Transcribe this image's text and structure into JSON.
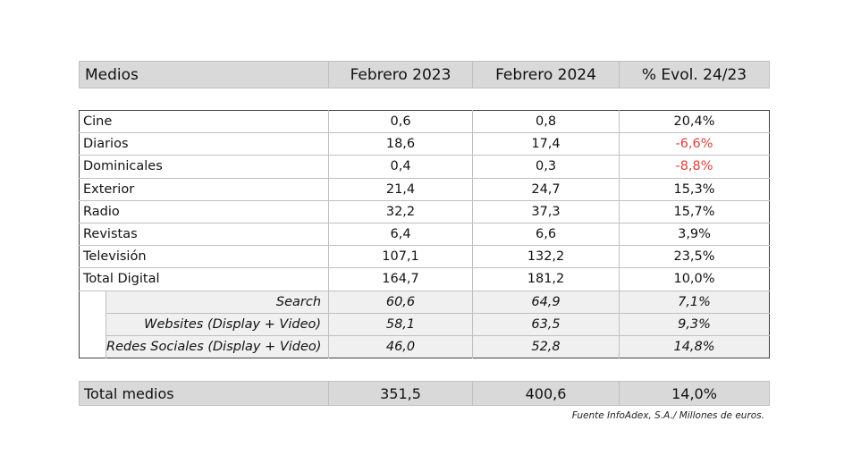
{
  "header": {
    "medio": "Medios",
    "col1": "Febrero 2023",
    "col2": "Febrero 2024",
    "col3": "% Evol. 24/23"
  },
  "rows": [
    {
      "name": "Cine",
      "v2023": "0,6",
      "v2024": "0,8",
      "evol": "20,4%"
    },
    {
      "name": "Diarios",
      "v2023": "18,6",
      "v2024": "17,4",
      "evol": "-6,6%"
    },
    {
      "name": "Dominicales",
      "v2023": "0,4",
      "v2024": "0,3",
      "evol": "-8,8%"
    },
    {
      "name": "Exterior",
      "v2023": "21,4",
      "v2024": "24,7",
      "evol": "15,3%"
    },
    {
      "name": "Radio",
      "v2023": "32,2",
      "v2024": "37,3",
      "evol": "15,7%"
    },
    {
      "name": "Revistas",
      "v2023": "6,4",
      "v2024": "6,6",
      "evol": "3,9%"
    },
    {
      "name": "Televisión",
      "v2023": "107,1",
      "v2024": "132,2",
      "evol": "23,5%"
    },
    {
      "name": "Total Digital",
      "v2023": "164,7",
      "v2024": "181,2",
      "evol": "10,0%"
    }
  ],
  "subrows": [
    {
      "name": "Search",
      "v2023": "60,6",
      "v2024": "64,9",
      "evol": "7,1%"
    },
    {
      "name": "Websites (Display + Video)",
      "v2023": "58,1",
      "v2024": "63,5",
      "evol": "9,3%"
    },
    {
      "name": "Redes Sociales (Display + Video)",
      "v2023": "46,0",
      "v2024": "52,8",
      "evol": "14,8%"
    }
  ],
  "total": {
    "name": "Total medios",
    "v2023": "351,5",
    "v2024": "400,6",
    "evol": "14,0%"
  },
  "source": "Fuente InfoAdex, S.A./ Millones de euros.",
  "colors": {
    "header_bg": "#d9d9d9",
    "negative": "#e0403a",
    "sub_bg": "#f0f0f0"
  }
}
